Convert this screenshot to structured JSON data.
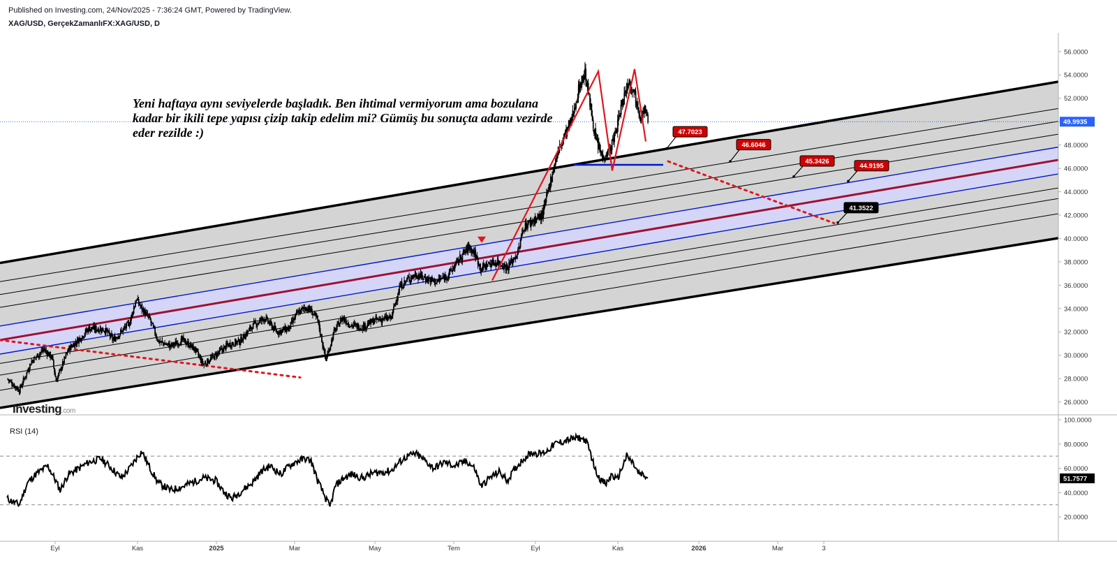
{
  "header": {
    "published": "Published on Investing.com, 24/Nov/2025 - 7:36:24 GMT, Powered by TradingView.",
    "symbol": "XAG/USD, GerçekZamanlıFX:XAG/USD, D"
  },
  "annotation_text": "Yeni haftaya aynı seviyelerde başladık. Ben ihtimal vermiyorum ama bozulana kadar bir ikili tepe yapısı çizip takip edelim mi? Gümüş bu sonuçta adamı vezirde eder rezilde :)",
  "watermark": {
    "main": "Investing",
    "suffix": ".com"
  },
  "colors": {
    "candle": "#000000",
    "channel_fill": "#d4d4d4",
    "center_band_fill": "#d5d5f7",
    "channel_mid_line": "#9e1130",
    "band_line": "#0019c8",
    "pattern_line": "#e2151d",
    "dotted_line": "#e2151d",
    "price_label_bg": "#d00000",
    "current_price_bg": "#2962ff"
  },
  "chart_data": [
    {
      "type": "candlestick",
      "instrument": "XAG/USD",
      "timeframe": "D",
      "x_tick_labels": [
        "Eyl",
        "Kas",
        "2025",
        "Mar",
        "May",
        "Tem",
        "Eyl",
        "Kas",
        "2026",
        "Mar",
        "3"
      ],
      "y_ticks": [
        "56.0000",
        "54.0000",
        "52.0000",
        "50.0000",
        "48.0000",
        "46.0000",
        "44.0000",
        "42.0000",
        "40.0000",
        "38.0000",
        "36.0000",
        "34.0000",
        "32.0000",
        "30.0000",
        "28.0000",
        "26.0000"
      ],
      "ylim": [
        24.9,
        57.6
      ],
      "current_price": "49.9935",
      "price_path": [
        [
          0,
          28.0
        ],
        [
          15,
          27.0
        ],
        [
          30,
          29.5
        ],
        [
          45,
          30.5
        ],
        [
          55,
          29.8
        ],
        [
          60,
          27.8
        ],
        [
          75,
          30.5
        ],
        [
          90,
          31.5
        ],
        [
          100,
          32.3
        ],
        [
          120,
          32.2
        ],
        [
          130,
          31.3
        ],
        [
          150,
          32.8
        ],
        [
          158,
          34.8
        ],
        [
          165,
          34.0
        ],
        [
          175,
          33.0
        ],
        [
          185,
          31.2
        ],
        [
          200,
          30.8
        ],
        [
          215,
          31.3
        ],
        [
          230,
          30.5
        ],
        [
          240,
          29.2
        ],
        [
          255,
          30.0
        ],
        [
          270,
          30.9
        ],
        [
          285,
          31.2
        ],
        [
          300,
          32.5
        ],
        [
          315,
          33.2
        ],
        [
          330,
          32.0
        ],
        [
          345,
          32.3
        ],
        [
          355,
          33.6
        ],
        [
          365,
          34.1
        ],
        [
          372,
          33.8
        ],
        [
          380,
          33.0
        ],
        [
          390,
          29.6
        ],
        [
          400,
          32.0
        ],
        [
          410,
          33.2
        ],
        [
          420,
          32.6
        ],
        [
          435,
          32.4
        ],
        [
          450,
          33.0
        ],
        [
          470,
          33.2
        ],
        [
          480,
          35.8
        ],
        [
          490,
          36.5
        ],
        [
          500,
          36.9
        ],
        [
          512,
          36.6
        ],
        [
          525,
          36.3
        ],
        [
          540,
          36.9
        ],
        [
          555,
          38.4
        ],
        [
          565,
          39.3
        ],
        [
          572,
          38.7
        ],
        [
          580,
          37.4
        ],
        [
          588,
          37.8
        ],
        [
          600,
          38.0
        ],
        [
          612,
          37.5
        ],
        [
          625,
          38.8
        ],
        [
          632,
          41.0
        ],
        [
          645,
          41.6
        ],
        [
          655,
          42.0
        ],
        [
          665,
          45.0
        ],
        [
          672,
          47.0
        ],
        [
          680,
          48.5
        ],
        [
          690,
          50.0
        ],
        [
          700,
          53.0
        ],
        [
          707,
          54.2
        ],
        [
          712,
          52.0
        ],
        [
          720,
          48.5
        ],
        [
          728,
          47.0
        ],
        [
          738,
          47.6
        ],
        [
          745,
          49.2
        ],
        [
          752,
          51.5
        ],
        [
          760,
          53.5
        ],
        [
          766,
          52.8
        ],
        [
          775,
          50.5
        ],
        [
          780,
          51.0
        ],
        [
          784,
          50.0
        ]
      ]
    },
    {
      "type": "line",
      "title": "RSI (14)",
      "y_ticks": [
        "100.0000",
        "80.0000",
        "60.0000",
        "40.0000",
        "20.0000"
      ],
      "ylim": [
        0,
        104
      ],
      "reference_levels": [
        70,
        30
      ],
      "current_value": "51.7577",
      "values": [
        [
          0,
          35
        ],
        [
          15,
          30
        ],
        [
          25,
          48
        ],
        [
          35,
          55
        ],
        [
          50,
          62
        ],
        [
          58,
          52
        ],
        [
          65,
          42
        ],
        [
          75,
          55
        ],
        [
          88,
          60
        ],
        [
          100,
          65
        ],
        [
          115,
          68
        ],
        [
          125,
          62
        ],
        [
          140,
          52
        ],
        [
          150,
          60
        ],
        [
          160,
          70
        ],
        [
          165,
          74
        ],
        [
          175,
          60
        ],
        [
          185,
          48
        ],
        [
          200,
          42
        ],
        [
          215,
          45
        ],
        [
          225,
          48
        ],
        [
          240,
          52
        ],
        [
          255,
          50
        ],
        [
          265,
          41
        ],
        [
          275,
          35
        ],
        [
          288,
          42
        ],
        [
          300,
          48
        ],
        [
          312,
          58
        ],
        [
          322,
          62
        ],
        [
          335,
          55
        ],
        [
          345,
          62
        ],
        [
          355,
          66
        ],
        [
          365,
          68
        ],
        [
          372,
          66
        ],
        [
          380,
          50
        ],
        [
          388,
          38
        ],
        [
          395,
          28
        ],
        [
          402,
          46
        ],
        [
          412,
          52
        ],
        [
          422,
          55
        ],
        [
          435,
          52
        ],
        [
          447,
          56
        ],
        [
          460,
          57
        ],
        [
          470,
          58
        ],
        [
          480,
          65
        ],
        [
          490,
          70
        ],
        [
          500,
          72
        ],
        [
          512,
          66
        ],
        [
          522,
          60
        ],
        [
          535,
          65
        ],
        [
          548,
          62
        ],
        [
          562,
          66
        ],
        [
          572,
          60
        ],
        [
          580,
          45
        ],
        [
          590,
          52
        ],
        [
          602,
          57
        ],
        [
          612,
          50
        ],
        [
          622,
          60
        ],
        [
          632,
          68
        ],
        [
          642,
          73
        ],
        [
          652,
          72
        ],
        [
          660,
          74
        ],
        [
          670,
          80
        ],
        [
          680,
          82
        ],
        [
          690,
          84
        ],
        [
          700,
          85
        ],
        [
          708,
          83
        ],
        [
          714,
          72
        ],
        [
          720,
          58
        ],
        [
          727,
          50
        ],
        [
          733,
          47
        ],
        [
          740,
          55
        ],
        [
          746,
          50
        ],
        [
          752,
          60
        ],
        [
          758,
          70
        ],
        [
          766,
          64
        ],
        [
          772,
          56
        ],
        [
          778,
          54
        ],
        [
          784,
          52
        ]
      ]
    }
  ],
  "channel": {
    "lines": [
      {
        "x1": 0,
        "y1": 37.9,
        "x2": 1524,
        "y2": 53.5
      },
      {
        "x1": 0,
        "y1": 36.3,
        "x2": 1524,
        "y2": 51.2
      },
      {
        "x1": 0,
        "y1": 35.2,
        "x2": 1524,
        "y2": 50.1
      },
      {
        "x1": 0,
        "y1": 34.1,
        "x2": 1524,
        "y2": 49.0
      },
      {
        "x1": 0,
        "y1": 32.5,
        "x2": 1524,
        "y2": 47.9
      },
      {
        "x1": 0,
        "y1": 31.3,
        "x2": 1524,
        "y2": 46.8
      },
      {
        "x1": 0,
        "y1": 30.1,
        "x2": 1524,
        "y2": 45.6
      },
      {
        "x1": 0,
        "y1": 29.3,
        "x2": 1524,
        "y2": 44.4
      },
      {
        "x1": 0,
        "y1": 28.3,
        "x2": 1524,
        "y2": 43.5
      },
      {
        "x1": 0,
        "y1": 27.0,
        "x2": 1524,
        "y2": 42.2
      },
      {
        "x1": 0,
        "y1": 25.5,
        "x2": 1524,
        "y2": 40.1
      }
    ],
    "band_upper_index": 4,
    "band_lower_index": 6,
    "mid_index": 5
  },
  "drawings": {
    "double_top": [
      [
        705,
        36.4
      ],
      [
        857,
        54.3
      ],
      [
        877,
        45.8
      ],
      [
        909,
        54.5
      ],
      [
        925,
        48.3
      ]
    ],
    "neckline": [
      [
        822,
        46.3
      ],
      [
        950,
        46.3
      ]
    ],
    "dotted_projection": [
      [
        957,
        46.6
      ],
      [
        1195,
        41.3
      ]
    ],
    "dotted_support": [
      [
        0,
        31.3
      ],
      [
        430,
        28.1
      ]
    ],
    "top_marker": [
      690,
      39.8
    ],
    "price_labels": [
      {
        "text": "47.7023",
        "x": 964,
        "price": 49.1,
        "tip": [
          955,
          47.7
        ],
        "style": "red"
      },
      {
        "text": "46.6046",
        "x": 1055,
        "price": 48.0,
        "tip": [
          1046,
          46.6
        ],
        "style": "red"
      },
      {
        "text": "45.3426",
        "x": 1146,
        "price": 46.6,
        "tip": [
          1137,
          45.3
        ],
        "style": "red"
      },
      {
        "text": "44.9195",
        "x": 1224,
        "price": 46.2,
        "tip": [
          1215,
          44.9
        ],
        "style": "red"
      },
      {
        "text": "41.3522",
        "x": 1209,
        "price": 42.6,
        "tip": [
          1200,
          41.35
        ],
        "style": "black"
      }
    ]
  }
}
